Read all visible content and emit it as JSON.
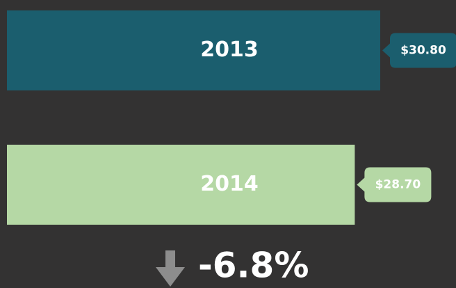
{
  "chart_data": {
    "type": "bar",
    "orientation": "horizontal",
    "categories": [
      "2013",
      "2014"
    ],
    "values": [
      30.8,
      28.7
    ],
    "value_labels": [
      "$30.80",
      "$28.70"
    ],
    "colors": [
      "#1b5e6e",
      "#b5d8a5"
    ],
    "annotation": "-6.8%"
  }
}
